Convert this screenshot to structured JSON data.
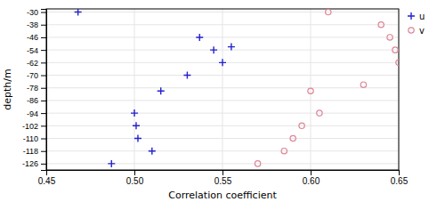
{
  "chart_data": {
    "type": "scatter",
    "x_label": "Correlation coefficient",
    "y_label": "depth/m",
    "xlim": [
      0.45,
      0.65
    ],
    "ylim": [
      -130,
      -28
    ],
    "xticks": [
      0.45,
      {
        "value": 0.5,
        "label": "0.50"
      },
      0.55,
      {
        "value": 0.6,
        "label": "0.60"
      },
      0.65
    ],
    "yticks": [
      -30,
      -38,
      -46,
      -54,
      -62,
      -70,
      -78,
      -86,
      -94,
      -102,
      -110,
      -118,
      -126
    ],
    "grid": true,
    "legend": "upper right",
    "series": [
      {
        "name": "u",
        "color": "#2222cc",
        "marker": "plus",
        "x": [
          0.468,
          0.487,
          0.5,
          0.501,
          0.502,
          0.51,
          0.515,
          0.53,
          0.537,
          0.545,
          0.55,
          0.555
        ],
        "values": [
          -30,
          -126,
          -94,
          -102,
          -110,
          -118,
          -80,
          -70,
          -46,
          -54,
          -62,
          -52
        ]
      },
      {
        "name": "v",
        "color": "#dd8899",
        "marker": "circle",
        "x": [
          0.57,
          0.585,
          0.59,
          0.595,
          0.6,
          0.605,
          0.61,
          0.63,
          0.64,
          0.645,
          0.648,
          0.65
        ],
        "values": [
          -126,
          -118,
          -110,
          -102,
          -80,
          -94,
          -30,
          -76,
          -38,
          -46,
          -54,
          -62
        ]
      }
    ]
  }
}
